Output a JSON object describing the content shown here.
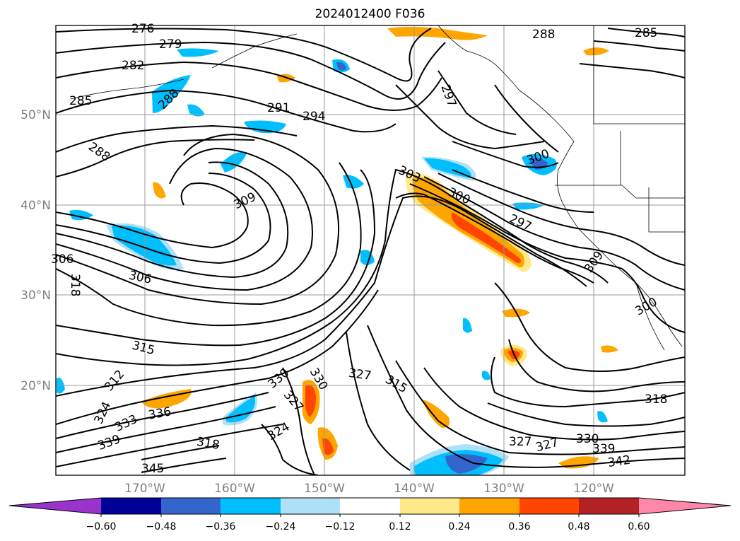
{
  "title": "2024012400 F036",
  "map": {
    "lat_labels": [
      "50°N",
      "40°N",
      "30°N",
      "20°N"
    ],
    "lon_labels": [
      "170°W",
      "160°W",
      "150°W",
      "140°W",
      "130°W",
      "120°W"
    ],
    "contour_labels": [
      "276",
      "279",
      "282",
      "285",
      "285",
      "288",
      "288",
      "288",
      "291",
      "294",
      "297",
      "297",
      "300",
      "300",
      "300",
      "303",
      "306",
      "306",
      "309",
      "309",
      "312",
      "315",
      "315",
      "318",
      "318",
      "318",
      "324",
      "324",
      "327",
      "327",
      "327",
      "327",
      "330",
      "330",
      "330",
      "333",
      "336",
      "339",
      "339",
      "342",
      "345"
    ]
  },
  "colorbar": {
    "tick_labels": [
      "−0.60",
      "−0.48",
      "−0.36",
      "−0.24",
      "−0.12",
      "0.12",
      "0.24",
      "0.36",
      "0.48",
      "0.60"
    ],
    "colors": [
      "#9933cc",
      "#000099",
      "#3366cc",
      "#00bfff",
      "#aee0f8",
      "#ffffff",
      "#ffe98a",
      "#ffa500",
      "#ff4500",
      "#b22222",
      "#ff88aa"
    ]
  }
}
